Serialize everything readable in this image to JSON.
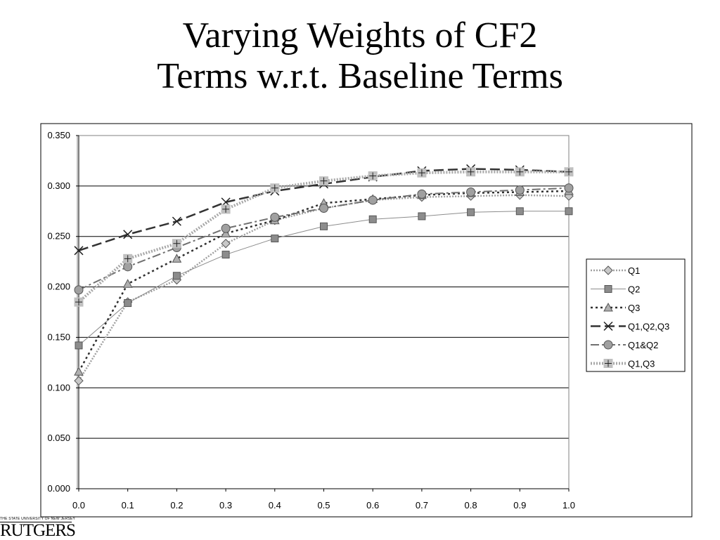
{
  "slide": {
    "title_line1": "Varying Weights of CF2",
    "title_line2": "Terms w.r.t. Baseline Terms"
  },
  "logo": {
    "tagline": "THE STATE UNIVERSITY OF NEW JERSEY",
    "name": "RUTGERS"
  },
  "chart_data": {
    "type": "line",
    "x": [
      0.0,
      0.1,
      0.2,
      0.3,
      0.4,
      0.5,
      0.6,
      0.7,
      0.8,
      0.9,
      1.0
    ],
    "x_tick_labels": [
      "0.0",
      "0.1",
      "0.2",
      "0.3",
      "0.4",
      "0.5",
      "0.6",
      "0.7",
      "0.8",
      "0.9",
      "1.0"
    ],
    "y_tick_labels": [
      "0.000",
      "0.050",
      "0.100",
      "0.150",
      "0.200",
      "0.250",
      "0.300",
      "0.350"
    ],
    "ylim": [
      0,
      0.35
    ],
    "xlim": [
      0,
      1.0
    ],
    "grid": "horizontal",
    "legend_position": "right",
    "series": [
      {
        "name": "Q1",
        "marker": "diamond",
        "line": "dotted-gray",
        "values": [
          0.107,
          0.185,
          0.207,
          0.243,
          0.266,
          0.278,
          0.286,
          0.289,
          0.29,
          0.291,
          0.29
        ]
      },
      {
        "name": "Q2",
        "marker": "square",
        "line": "solid-thin",
        "values": [
          0.142,
          0.184,
          0.211,
          0.232,
          0.248,
          0.26,
          0.267,
          0.27,
          0.274,
          0.275,
          0.275
        ]
      },
      {
        "name": "Q3",
        "marker": "triangle",
        "line": "dotted",
        "values": [
          0.116,
          0.203,
          0.228,
          0.253,
          0.266,
          0.283,
          0.287,
          0.291,
          0.293,
          0.294,
          0.295
        ]
      },
      {
        "name": "Q1,Q2,Q3",
        "marker": "x",
        "line": "long-dash",
        "values": [
          0.236,
          0.252,
          0.265,
          0.284,
          0.295,
          0.302,
          0.309,
          0.315,
          0.317,
          0.316,
          0.314
        ]
      },
      {
        "name": "Q1&Q2",
        "marker": "circle",
        "line": "dash-dot",
        "values": [
          0.197,
          0.22,
          0.239,
          0.258,
          0.269,
          0.278,
          0.286,
          0.292,
          0.294,
          0.296,
          0.298
        ]
      },
      {
        "name": "Q1,Q3",
        "marker": "plus-square",
        "line": "thick-dotted",
        "values": [
          0.185,
          0.228,
          0.243,
          0.277,
          0.298,
          0.305,
          0.31,
          0.313,
          0.314,
          0.314,
          0.314
        ]
      }
    ]
  }
}
